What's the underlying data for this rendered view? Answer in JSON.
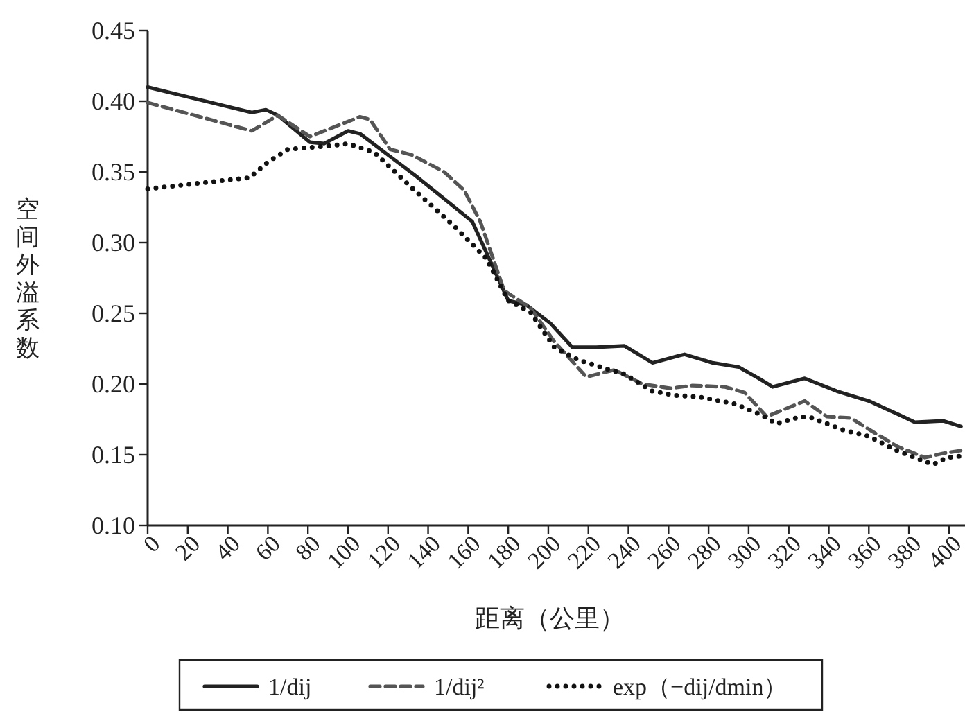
{
  "chart_data": {
    "type": "line",
    "xlabel": "距离（公里）",
    "ylabel": "空间外溢系数",
    "xlim": [
      0,
      408
    ],
    "ylim": [
      0.1,
      0.45
    ],
    "xticks": [
      0,
      20,
      40,
      60,
      80,
      100,
      120,
      140,
      160,
      180,
      200,
      220,
      240,
      260,
      280,
      300,
      320,
      340,
      360,
      380,
      400
    ],
    "yticks": [
      {
        "value": 0.1,
        "label": "0.10"
      },
      {
        "value": 0.15,
        "label": "0.15"
      },
      {
        "value": 0.2,
        "label": "0.20"
      },
      {
        "value": 0.25,
        "label": "0.25"
      },
      {
        "value": 0.3,
        "label": "0.30"
      },
      {
        "value": 0.35,
        "label": "0.35"
      },
      {
        "value": 0.4,
        "label": "0.40"
      },
      {
        "value": 0.45,
        "label": "0.45"
      }
    ],
    "grid": false,
    "legend": "bottom",
    "series": [
      {
        "name": "1/dij",
        "color": "#222222",
        "line_style": "solid",
        "x": [
          0,
          52,
          59,
          65,
          81,
          88,
          100,
          106,
          120,
          134,
          148,
          162,
          180,
          189,
          201,
          212,
          224,
          238,
          252,
          265,
          268,
          282,
          295,
          305,
          312,
          328,
          344,
          360,
          374,
          383,
          397,
          406
        ],
        "values": [
          0.41,
          0.392,
          0.394,
          0.39,
          0.371,
          0.37,
          0.379,
          0.377,
          0.362,
          0.347,
          0.331,
          0.315,
          0.259,
          0.256,
          0.243,
          0.226,
          0.226,
          0.227,
          0.215,
          0.22,
          0.221,
          0.215,
          0.212,
          0.204,
          0.198,
          0.204,
          0.195,
          0.188,
          0.179,
          0.173,
          0.174,
          0.17
        ]
      },
      {
        "name": "1/dij²",
        "color": "#555555",
        "line_style": "dashed",
        "x": [
          0,
          52,
          65,
          81,
          106,
          111,
          121,
          132,
          148,
          158,
          166,
          178,
          191,
          203,
          219,
          233,
          247,
          261,
          272,
          288,
          298,
          309,
          328,
          339,
          351,
          360,
          374,
          388,
          397,
          406
        ],
        "values": [
          0.399,
          0.379,
          0.39,
          0.375,
          0.389,
          0.387,
          0.366,
          0.362,
          0.35,
          0.337,
          0.315,
          0.266,
          0.254,
          0.23,
          0.205,
          0.21,
          0.2,
          0.197,
          0.199,
          0.198,
          0.194,
          0.177,
          0.188,
          0.177,
          0.176,
          0.168,
          0.156,
          0.148,
          0.151,
          0.153
        ]
      },
      {
        "name": "exp（−dij/dmin）",
        "color": "#111111",
        "line_style": "dotted",
        "x": [
          0,
          51,
          60,
          70,
          95,
          100,
          113,
          134,
          145,
          152,
          169,
          180,
          191,
          203,
          215,
          224,
          238,
          252,
          263,
          275,
          293,
          305,
          314,
          326,
          332,
          346,
          360,
          374,
          392,
          399,
          406
        ],
        "values": [
          0.338,
          0.346,
          0.357,
          0.366,
          0.369,
          0.37,
          0.364,
          0.336,
          0.322,
          0.313,
          0.289,
          0.259,
          0.251,
          0.226,
          0.217,
          0.213,
          0.207,
          0.195,
          0.192,
          0.191,
          0.186,
          0.179,
          0.172,
          0.177,
          0.176,
          0.168,
          0.163,
          0.153,
          0.143,
          0.148,
          0.149
        ]
      }
    ]
  }
}
